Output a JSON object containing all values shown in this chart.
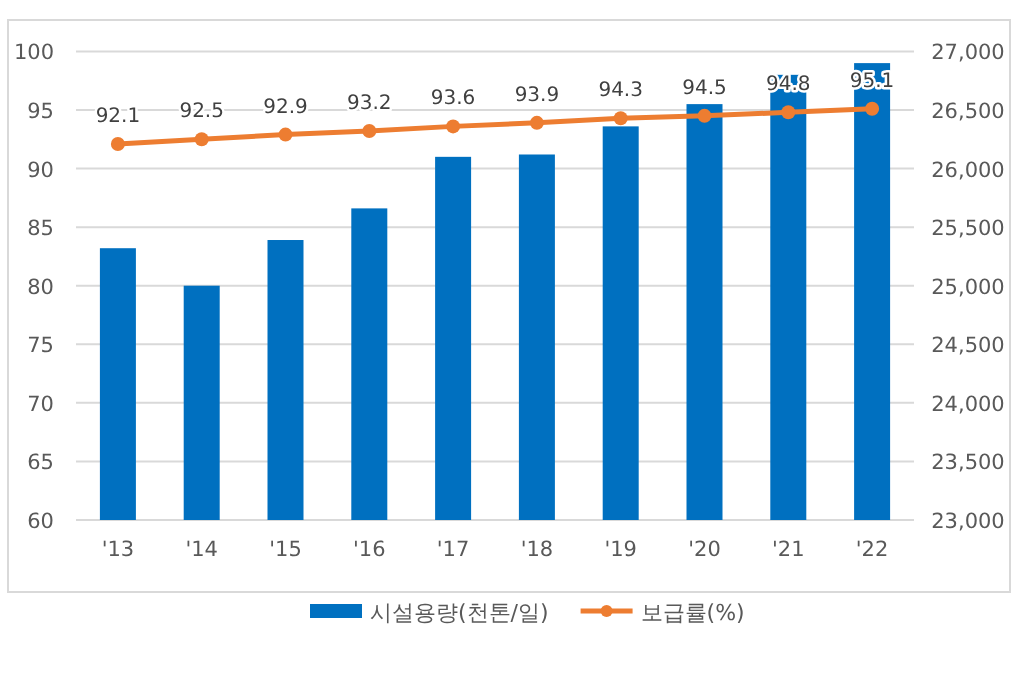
{
  "chart_data": {
    "type": "bar",
    "categories": [
      "'13",
      "'14",
      "'15",
      "'16",
      "'17",
      "'18",
      "'19",
      "'20",
      "'21",
      "'22"
    ],
    "series": [
      {
        "name": "시설용량(천톤/일)",
        "axis": "y2",
        "color": "#0070c0",
        "values": [
          25320,
          25000,
          25390,
          25660,
          26100,
          26120,
          26360,
          26550,
          26800,
          26900
        ]
      },
      {
        "name": "보급률(%)",
        "type": "line",
        "axis": "y",
        "color": "#ed7d31",
        "marker": "circle",
        "values": [
          92.1,
          92.5,
          92.9,
          93.2,
          93.6,
          93.9,
          94.3,
          94.5,
          94.8,
          95.1
        ],
        "value_labels": [
          "92.1",
          "92.5",
          "92.9",
          "93.2",
          "93.6",
          "93.9",
          "94.3",
          "94.5",
          "94.8",
          "95.1"
        ]
      }
    ],
    "ylim": [
      60,
      100
    ],
    "yticks": [
      60,
      65,
      70,
      75,
      80,
      85,
      90,
      95,
      100
    ],
    "y2lim": [
      23000,
      27000
    ],
    "y2ticks": [
      {
        "value": 23000,
        "label": "23,000"
      },
      {
        "value": 23500,
        "label": "23,500"
      },
      {
        "value": 24000,
        "label": "24,000"
      },
      {
        "value": 24500,
        "label": "24,500"
      },
      {
        "value": 25000,
        "label": "25,000"
      },
      {
        "value": 25500,
        "label": "25,500"
      },
      {
        "value": 26000,
        "label": "26,000"
      },
      {
        "value": 26500,
        "label": "26,500"
      },
      {
        "value": 27000,
        "label": "27,000"
      }
    ],
    "grid": "y",
    "legend": "bottom"
  }
}
